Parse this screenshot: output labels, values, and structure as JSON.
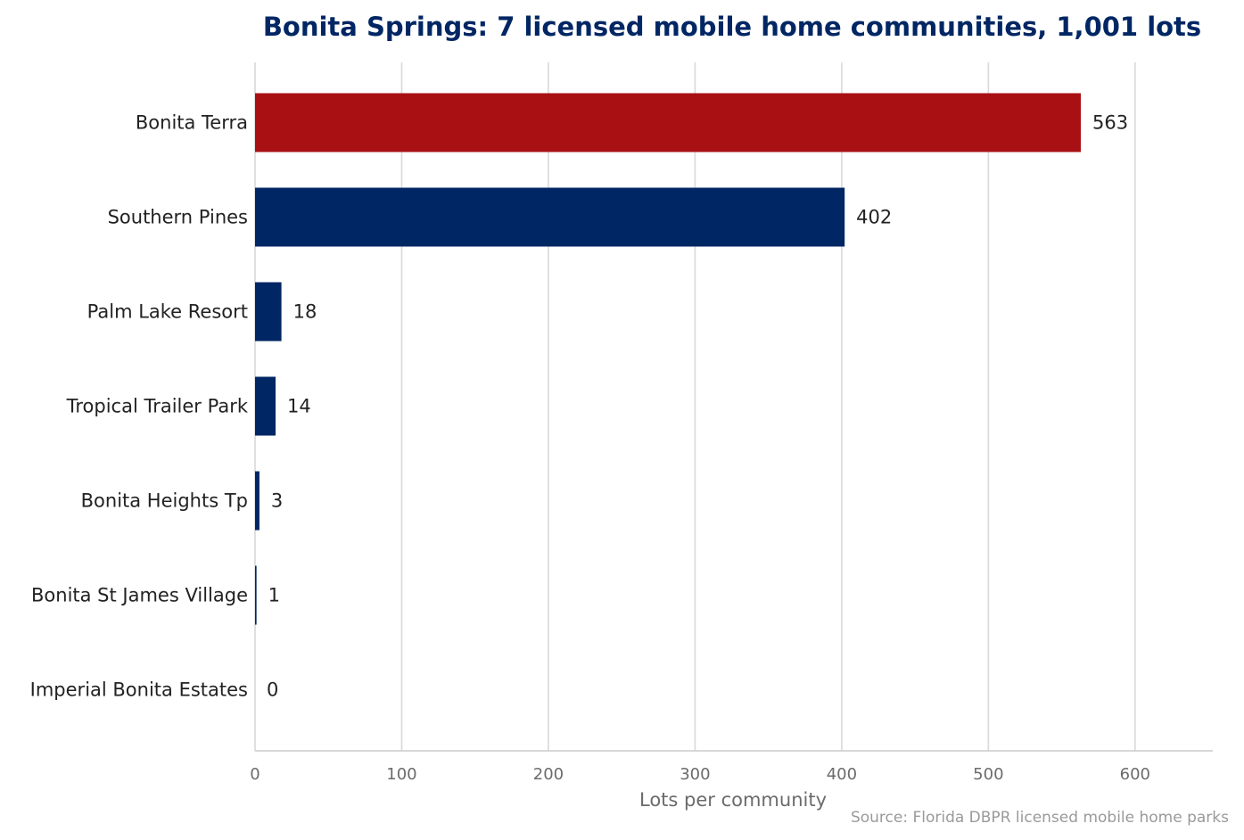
{
  "colors": {
    "highlight": "#a81014",
    "bar": "#002664",
    "title": "#002664",
    "grid": "#d9d9d9",
    "axis_line": "#cccccc"
  },
  "source_note": "Source: Florida DBPR licensed mobile home parks",
  "chart_data": {
    "type": "bar",
    "orientation": "horizontal",
    "title": "Bonita Springs: 7 licensed mobile home communities, 1,001 lots",
    "xlabel": "Lots per community",
    "ylabel": "",
    "xlim": [
      0,
      653
    ],
    "xticks": [
      0,
      100,
      200,
      300,
      400,
      500,
      600
    ],
    "grid": true,
    "categories": [
      "Bonita Terra",
      "Southern Pines",
      "Palm Lake Resort",
      "Tropical Trailer Park",
      "Bonita Heights Tp",
      "Bonita St James Village",
      "Imperial Bonita Estates"
    ],
    "values": [
      563,
      402,
      18,
      14,
      3,
      1,
      0
    ],
    "highlighted_category": "Bonita Terra"
  }
}
